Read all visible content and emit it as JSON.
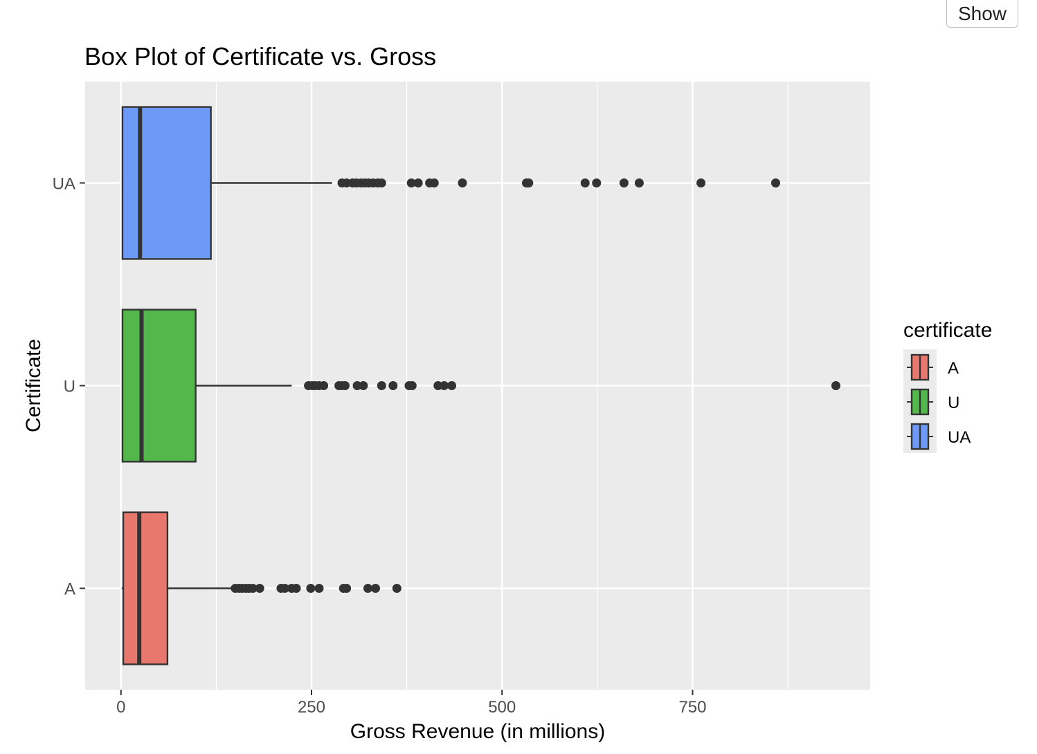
{
  "toolbar": {
    "show_label": "Show"
  },
  "chart_data": {
    "type": "boxplot",
    "orientation": "horizontal",
    "title": "Box Plot of Certificate vs. Gross",
    "xlabel": "Gross Revenue (in millions)",
    "ylabel": "Certificate",
    "xlim": [
      -47,
      983
    ],
    "x_ticks": [
      0,
      250,
      500,
      750
    ],
    "x_minor_ticks": [
      125,
      375,
      625,
      875
    ],
    "categories": [
      "A",
      "U",
      "UA"
    ],
    "grid": true,
    "colors": {
      "A": "#E8786E",
      "U": "#53B74C",
      "UA": "#6D9AF6",
      "panel_background": "#EBEBEB",
      "grid": "#FFFFFF",
      "outline": "#333333"
    },
    "legend": {
      "title": "certificate",
      "position": "right",
      "entries": [
        "A",
        "U",
        "UA"
      ]
    },
    "series": [
      {
        "category": "UA",
        "whisker_low": 1,
        "q1": 2,
        "median": 25,
        "q3": 118,
        "whisker_high": 277,
        "outliers": [
          290,
          296,
          304,
          309,
          315,
          320,
          325,
          331,
          337,
          342,
          381,
          390,
          405,
          411,
          448,
          532,
          535,
          609,
          624,
          660,
          680,
          761,
          859
        ]
      },
      {
        "category": "U",
        "whisker_low": 1,
        "q1": 2,
        "median": 27,
        "q3": 98,
        "whisker_high": 224,
        "outliers": [
          246,
          251,
          255,
          260,
          266,
          286,
          290,
          294,
          310,
          318,
          342,
          357,
          378,
          382,
          416,
          424,
          434,
          938
        ]
      },
      {
        "category": "A",
        "whisker_low": 1,
        "q1": 3,
        "median": 24,
        "q3": 61,
        "whisker_high": 148,
        "outliers": [
          150,
          155,
          159,
          164,
          168,
          173,
          182,
          210,
          215,
          224,
          230,
          249,
          260,
          292,
          296,
          324,
          334,
          362
        ]
      }
    ]
  }
}
